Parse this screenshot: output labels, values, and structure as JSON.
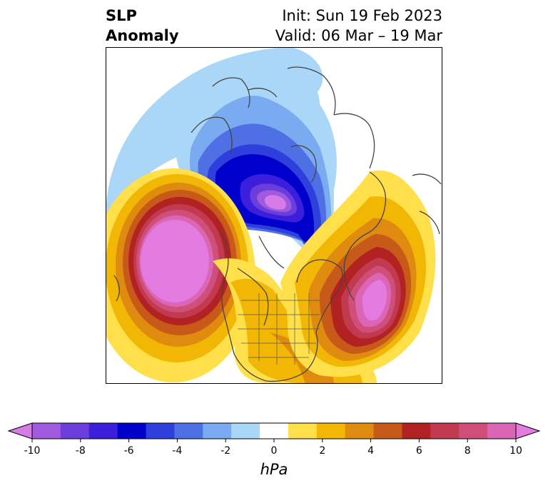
{
  "title": {
    "left_line1": "SLP",
    "left_line2": "Anomaly",
    "right_line1": "Init: Sun 19 Feb 2023",
    "right_line2": "Valid: 06 Mar – 19 Mar"
  },
  "colorbar": {
    "unit": "hPa",
    "ticks": [
      "-10",
      "-8",
      "-6",
      "-4",
      "-2",
      "0",
      "2",
      "4",
      "6",
      "8",
      "10"
    ],
    "colors": [
      "#d77be6",
      "#a05ae0",
      "#6b3ddb",
      "#3b1fdc",
      "#0000cc",
      "#2e3fdc",
      "#4f70e4",
      "#7aaaf0",
      "#aad6f7",
      "#ffffff",
      "#ffe04a",
      "#f2b705",
      "#de8b0f",
      "#c85a19",
      "#b22222",
      "#c23a50",
      "#cf4f7a",
      "#db66b5",
      "#e47be0"
    ]
  }
}
